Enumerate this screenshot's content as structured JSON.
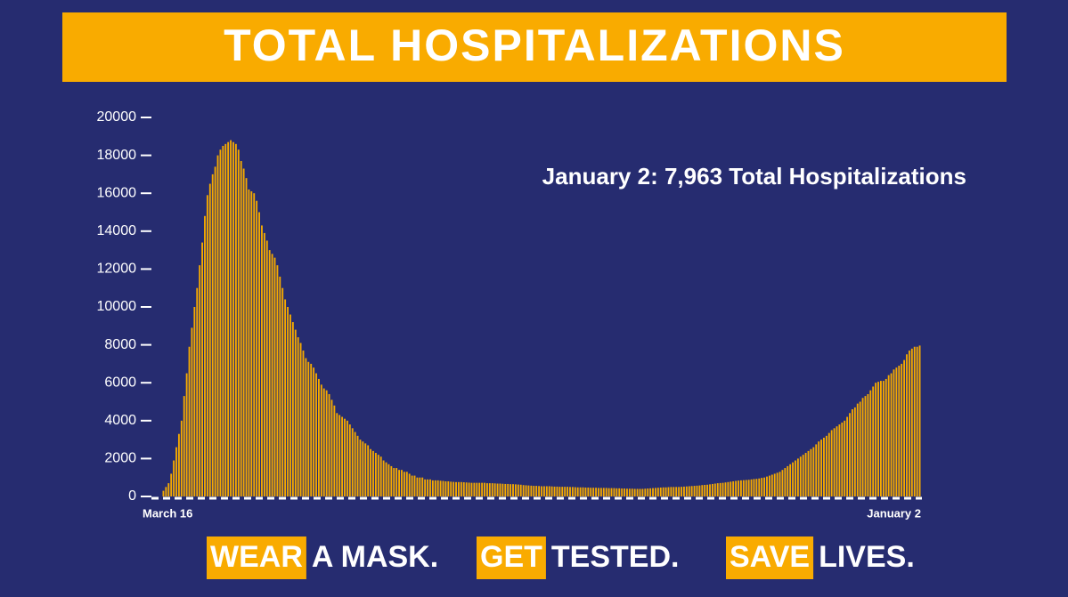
{
  "chart_data": {
    "type": "bar",
    "title": "TOTAL HOSPITALIZATIONS",
    "annotation": "January 2: 7,963 Total Hospitalizations",
    "color": "#f5aa00",
    "categories": [
      "March 16",
      null,
      null,
      null,
      null,
      null,
      null,
      null,
      null,
      null,
      null,
      null,
      null,
      null,
      null,
      null,
      null,
      null,
      null,
      null,
      null,
      null,
      null,
      null,
      null,
      null,
      null,
      null,
      null,
      null,
      null,
      null,
      null,
      null,
      null,
      null,
      null,
      null,
      null,
      null,
      null,
      null,
      null,
      null,
      null,
      null,
      null,
      null,
      null,
      null,
      null,
      null,
      null,
      null,
      null,
      null,
      null,
      null,
      null,
      null,
      null,
      null,
      null,
      null,
      null,
      null,
      null,
      null,
      null,
      null,
      null,
      null,
      null,
      null,
      null,
      null,
      null,
      null,
      null,
      null,
      null,
      null,
      null,
      null,
      null,
      null,
      null,
      null,
      null,
      null,
      null,
      null,
      null,
      null,
      null,
      null,
      null,
      null,
      null,
      null,
      null,
      null,
      null,
      null,
      null,
      null,
      null,
      null,
      null,
      null,
      null,
      null,
      null,
      null,
      null,
      null,
      null,
      null,
      null,
      null,
      null,
      null,
      null,
      null,
      null,
      null,
      null,
      null,
      null,
      null,
      null,
      null,
      null,
      null,
      null,
      null,
      null,
      null,
      null,
      null,
      null,
      null,
      null,
      null,
      null,
      null,
      null,
      null,
      null,
      null,
      null,
      null,
      null,
      null,
      null,
      null,
      null,
      null,
      null,
      null,
      null,
      null,
      null,
      null,
      null,
      null,
      null,
      null,
      null,
      null,
      null,
      null,
      null,
      null,
      null,
      null,
      null,
      null,
      null,
      null,
      null,
      null,
      null,
      null,
      null,
      null,
      null,
      null,
      null,
      null,
      null,
      null,
      null,
      null,
      null,
      null,
      null,
      null,
      null,
      null,
      null,
      null,
      null,
      null,
      null,
      null,
      null,
      null,
      null,
      null,
      null,
      null,
      null,
      null,
      null,
      null,
      null,
      null,
      null,
      null,
      null,
      null,
      null,
      null,
      null,
      null,
      null,
      null,
      null,
      null,
      null,
      null,
      null,
      null,
      null,
      null,
      null,
      null,
      null,
      null,
      null,
      null,
      null,
      null,
      null,
      null,
      null,
      null,
      null,
      null,
      null,
      null,
      null,
      null,
      null,
      null,
      null,
      null,
      null,
      null,
      null,
      null,
      null,
      null,
      null,
      null,
      null,
      null,
      null,
      null,
      null,
      null,
      null,
      null,
      null,
      null,
      null,
      null,
      null,
      null,
      null,
      null,
      null,
      null,
      null,
      null,
      null,
      null,
      null,
      null,
      null,
      null,
      "January 2"
    ],
    "values": [
      300,
      500,
      700,
      1200,
      1900,
      2600,
      3300,
      4000,
      5300,
      6500,
      7900,
      8900,
      10000,
      11000,
      12200,
      13400,
      14800,
      15900,
      16500,
      17000,
      17400,
      18000,
      18300,
      18500,
      18600,
      18700,
      18800,
      18700,
      18600,
      18300,
      17700,
      17300,
      16800,
      16200,
      16100,
      16000,
      15600,
      15000,
      14300,
      13900,
      13500,
      13000,
      12800,
      12600,
      12200,
      11600,
      11000,
      10400,
      10000,
      9600,
      9200,
      8800,
      8400,
      8100,
      7700,
      7300,
      7100,
      7000,
      6800,
      6500,
      6200,
      5900,
      5700,
      5600,
      5400,
      5100,
      4800,
      4400,
      4300,
      4200,
      4100,
      4000,
      3800,
      3600,
      3400,
      3200,
      3000,
      2900,
      2800,
      2700,
      2500,
      2400,
      2300,
      2200,
      2100,
      1900,
      1800,
      1700,
      1600,
      1500,
      1500,
      1400,
      1400,
      1300,
      1300,
      1200,
      1100,
      1100,
      1000,
      1000,
      1000,
      900,
      900,
      900,
      850,
      850,
      850,
      830,
      820,
      800,
      800,
      780,
      770,
      760,
      760,
      760,
      750,
      740,
      730,
      720,
      720,
      720,
      720,
      720,
      720,
      700,
      700,
      700,
      690,
      680,
      680,
      670,
      660,
      660,
      650,
      650,
      640,
      630,
      620,
      600,
      590,
      580,
      570,
      560,
      560,
      550,
      540,
      540,
      540,
      540,
      530,
      520,
      520,
      510,
      510,
      510,
      510,
      500,
      500,
      490,
      480,
      480,
      480,
      470,
      470,
      460,
      460,
      460,
      450,
      450,
      450,
      450,
      440,
      440,
      440,
      430,
      430,
      420,
      420,
      410,
      410,
      410,
      400,
      400,
      400,
      400,
      410,
      420,
      430,
      440,
      450,
      460,
      470,
      480,
      480,
      490,
      500,
      500,
      500,
      500,
      510,
      520,
      530,
      540,
      550,
      560,
      570,
      580,
      600,
      610,
      620,
      640,
      660,
      680,
      700,
      710,
      720,
      740,
      760,
      780,
      800,
      820,
      840,
      850,
      860,
      870,
      880,
      900,
      920,
      930,
      950,
      980,
      1000,
      1050,
      1100,
      1150,
      1200,
      1250,
      1300,
      1400,
      1500,
      1600,
      1700,
      1800,
      1900,
      2000,
      2100,
      2200,
      2300,
      2400,
      2500,
      2600,
      2750,
      2900,
      3000,
      3100,
      3200,
      3350,
      3500,
      3600,
      3700,
      3800,
      3900,
      4000,
      4200,
      4400,
      4600,
      4700,
      4900,
      5000,
      5200,
      5300,
      5400,
      5600,
      5800,
      6000,
      6050,
      6100,
      6100,
      6200,
      6400,
      6500,
      6700,
      6800,
      6900,
      7000,
      7200,
      7500,
      7700,
      7800,
      7900,
      7900,
      7963
    ],
    "ylim": [
      0,
      20000
    ],
    "yticks": [
      0,
      2000,
      4000,
      6000,
      8000,
      10000,
      12000,
      14000,
      16000,
      18000,
      20000
    ]
  },
  "slogans": [
    {
      "highlight": "WEAR",
      "text": "A MASK."
    },
    {
      "highlight": "GET",
      "text": "TESTED."
    },
    {
      "highlight": "SAVE",
      "text": "LIVES."
    }
  ]
}
